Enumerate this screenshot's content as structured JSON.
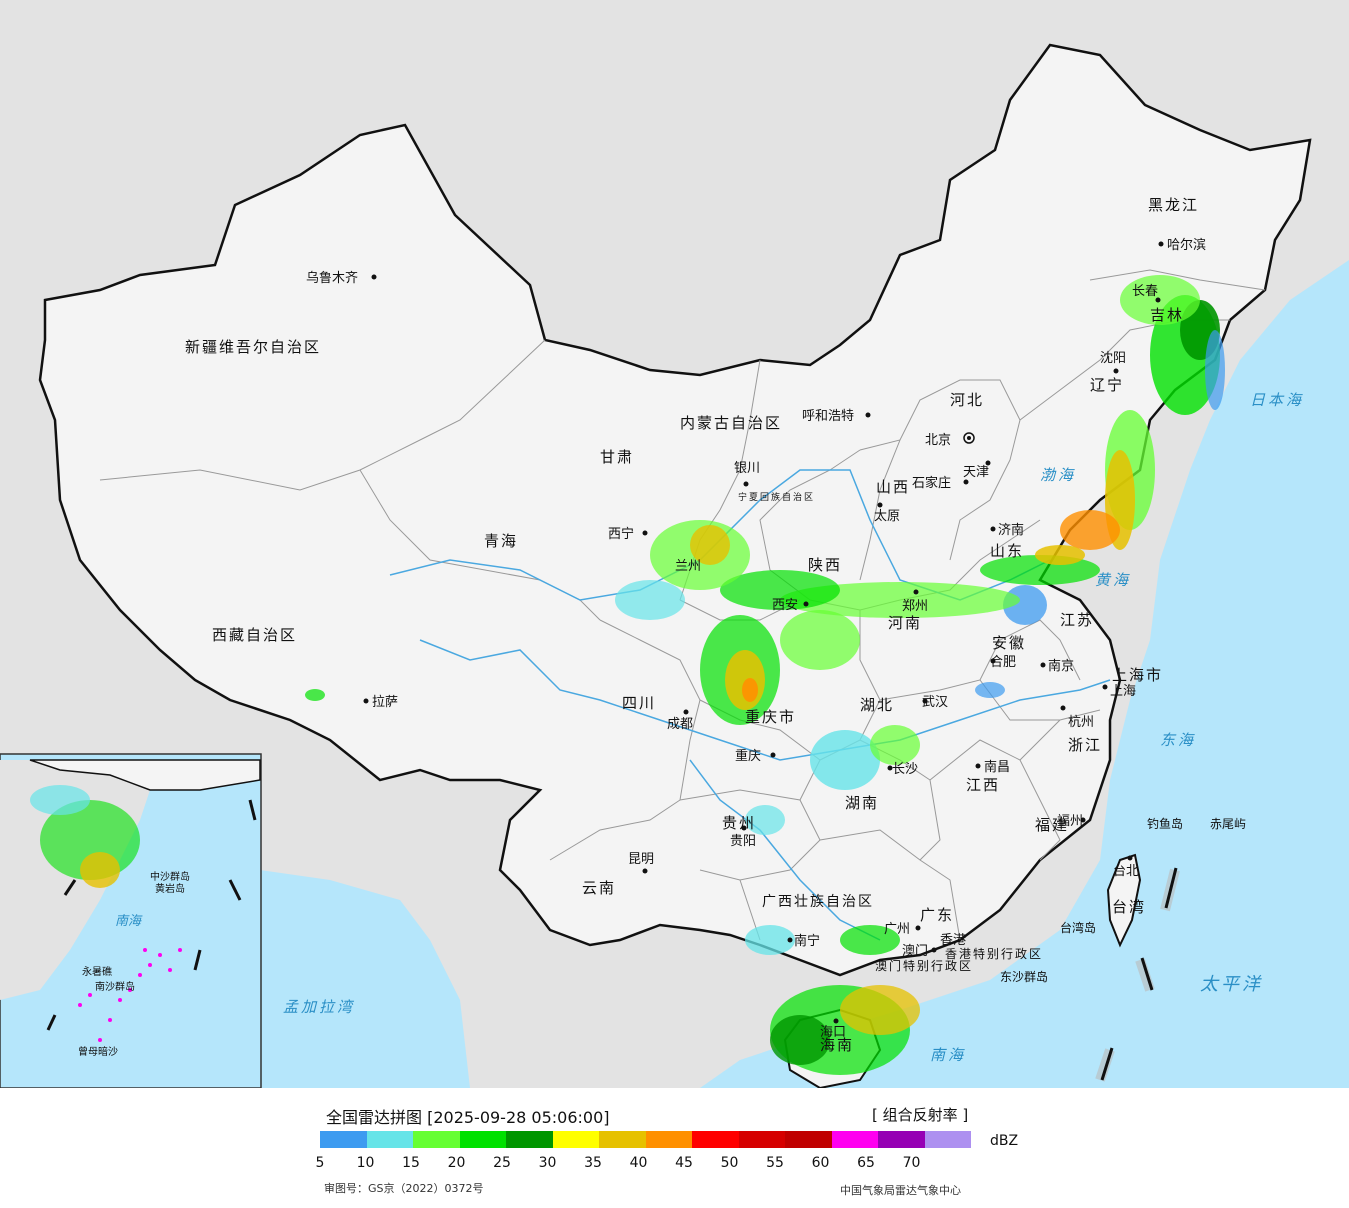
{
  "legend": {
    "title": "全国雷达拼图 [2025-09-28 05:06:00]",
    "product": "[ 组合反射率 ]",
    "unit": "dBZ",
    "ticks": [
      "5",
      "10",
      "15",
      "20",
      "25",
      "30",
      "35",
      "40",
      "45",
      "50",
      "55",
      "60",
      "65",
      "70"
    ],
    "colors": [
      "#3d9bf0",
      "#66e4e8",
      "#66ff33",
      "#00e100",
      "#009600",
      "#ffff00",
      "#e6c100",
      "#ff9000",
      "#ff0000",
      "#d60000",
      "#c00000",
      "#ff00f0",
      "#9600b4",
      "#ad90f0"
    ],
    "approval": "审图号：GS京（2022）0372号",
    "agency": "中国气象局雷达气象中心"
  },
  "map": {
    "provinces": [
      "新疆维吾尔自治区",
      "西藏自治区",
      "青海",
      "甘肃",
      "四川",
      "云南",
      "贵州",
      "广西壮族自治区",
      "广东",
      "湖南",
      "湖北",
      "江西",
      "福建",
      "浙江",
      "江苏",
      "安徽",
      "山东",
      "河南",
      "陕西",
      "山西",
      "河北",
      "内蒙古自治区",
      "辽宁",
      "吉林",
      "黑龙江",
      "宁夏回族自治区",
      "重庆市",
      "上海市",
      "台湾",
      "香港特别行政区",
      "澳门特别行政区",
      "海南"
    ],
    "cities": [
      "乌鲁木齐",
      "拉萨",
      "西宁",
      "兰州",
      "银川",
      "呼和浩特",
      "北京",
      "天津",
      "石家庄",
      "太原",
      "济南",
      "郑州",
      "西安",
      "成都",
      "重庆",
      "武汉",
      "合肥",
      "南京",
      "上海",
      "杭州",
      "南昌",
      "长沙",
      "贵阳",
      "昆明",
      "南宁",
      "广州",
      "澳门",
      "香港",
      "福州",
      "台北",
      "海口",
      "沈阳",
      "长春",
      "哈尔滨"
    ],
    "seas": [
      "日本海",
      "渤海",
      "黄海",
      "东海",
      "太平洋",
      "南海",
      "孟加拉湾"
    ],
    "islands": [
      "钓鱼岛",
      "赤尾屿",
      "台湾岛",
      "东沙群岛",
      "中沙群岛",
      "黄岩岛",
      "永暑礁",
      "南沙群岛",
      "曾母暗沙"
    ],
    "colors": {
      "land": "#f2f2f2",
      "sea": "#b5e6fb",
      "outside": "#e3e3e3",
      "border": "#111111",
      "province_border": "#999999",
      "river": "#4aa8e0"
    }
  }
}
